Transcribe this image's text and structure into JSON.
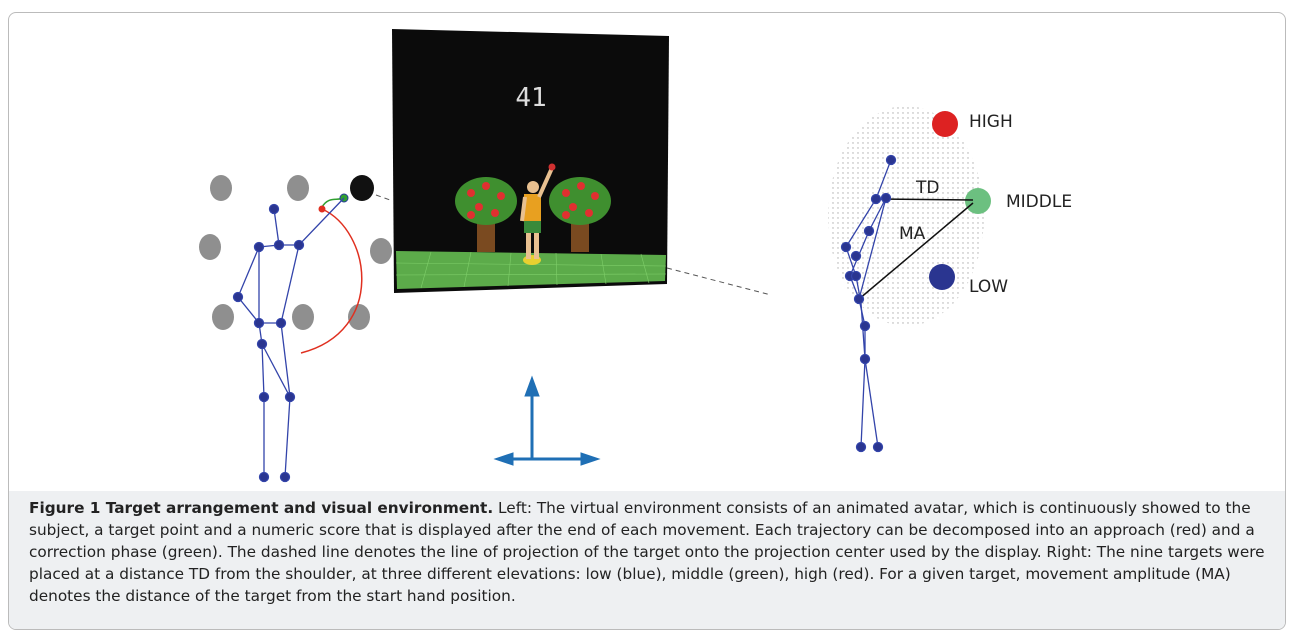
{
  "figure": {
    "score": "41",
    "labels": {
      "high": "HIGH",
      "middle": "MIDDLE",
      "low": "LOW",
      "td": "TD",
      "ma": "MA"
    }
  },
  "caption": {
    "title": "Figure 1 Target arrangement and visual environment.",
    "text": "Left: The virtual environment consists of an animated avatar, which is continuously showed to the subject, a target point and a numeric score that is displayed after the end of each movement. Each trajectory can be decomposed into an approach (red) and a correction phase (green). The dashed line denotes the line of projection of the target onto the projection center used by the display. Right: The nine targets were placed at a distance TD from the shoulder, at three different elevations: low (blue), middle (green), high (red). For a given target, movement amplitude (MA) denotes the distance of the target from the start hand position."
  }
}
